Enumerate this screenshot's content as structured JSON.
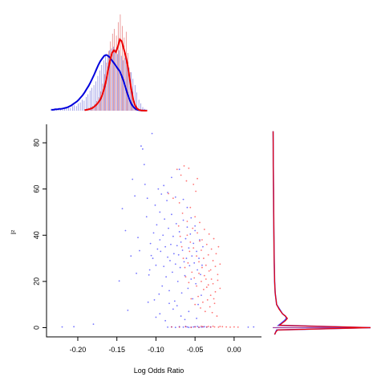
{
  "chart_data": {
    "type": "scatter",
    "title": "",
    "xlabel": "Log Odds Ratio",
    "ylabel": "I²",
    "xlim": [
      -0.24,
      0.035
    ],
    "ylim": [
      -4,
      88
    ],
    "x_ticks": [
      -0.2,
      -0.15,
      -0.1,
      -0.05,
      0.0
    ],
    "x_tick_labels": [
      "-0.20",
      "-0.15",
      "-0.10",
      "-0.05",
      "0.00"
    ],
    "y_ticks": [
      0,
      20,
      40,
      60,
      80
    ],
    "y_tick_labels": [
      "0",
      "20",
      "40",
      "60",
      "80"
    ],
    "grid": false,
    "legend": "none",
    "series": [
      {
        "color": "#0000ff",
        "points": [
          [
            -0.22,
            0.3
          ],
          [
            -0.205,
            0.4
          ],
          [
            -0.18,
            1.5
          ],
          [
            -0.147,
            20.2
          ],
          [
            -0.143,
            51.5
          ],
          [
            -0.139,
            42.0
          ],
          [
            -0.136,
            7.5
          ],
          [
            -0.132,
            31.0
          ],
          [
            -0.13,
            64.2
          ],
          [
            -0.127,
            57.0
          ],
          [
            -0.125,
            23.5
          ],
          [
            -0.123,
            39.0
          ],
          [
            -0.121,
            33.3
          ],
          [
            -0.119,
            78.6
          ],
          [
            -0.117,
            77.3
          ],
          [
            -0.115,
            70.6
          ],
          [
            -0.114,
            62.0
          ],
          [
            -0.112,
            48.0
          ],
          [
            -0.111,
            56.0
          ],
          [
            -0.11,
            11.0
          ],
          [
            -0.109,
            22.8
          ],
          [
            -0.108,
            25.0
          ],
          [
            -0.107,
            36.4
          ],
          [
            -0.106,
            31.2
          ],
          [
            -0.105,
            84.0
          ],
          [
            -0.104,
            30.0
          ],
          [
            -0.103,
            41.0
          ],
          [
            -0.102,
            12.0
          ],
          [
            -0.101,
            53.0
          ],
          [
            -0.1,
            27.0
          ],
          [
            -0.099,
            44.5
          ],
          [
            -0.098,
            34.0
          ],
          [
            -0.097,
            60.0
          ],
          [
            -0.096,
            14.5
          ],
          [
            -0.095,
            38.0
          ],
          [
            -0.094,
            33.0
          ],
          [
            -0.093,
            57.8
          ],
          [
            -0.092,
            18.0
          ],
          [
            -0.091,
            40.0
          ],
          [
            -0.09,
            26.5
          ],
          [
            -0.089,
            47.0
          ],
          [
            -0.088,
            35.0
          ],
          [
            -0.087,
            22.0
          ],
          [
            -0.086,
            55.0
          ],
          [
            -0.085,
            30.5
          ],
          [
            -0.084,
            43.0
          ],
          [
            -0.083,
            16.0
          ],
          [
            -0.082,
            29.0
          ],
          [
            -0.081,
            36.0
          ],
          [
            -0.08,
            49.0
          ],
          [
            -0.079,
            24.0
          ],
          [
            -0.078,
            39.5
          ],
          [
            -0.077,
            32.0
          ],
          [
            -0.076,
            11.5
          ],
          [
            -0.075,
            27.5
          ],
          [
            -0.074,
            45.0
          ],
          [
            -0.073,
            35.5
          ],
          [
            -0.072,
            20.0
          ],
          [
            -0.071,
            31.5
          ],
          [
            -0.07,
            41.5
          ],
          [
            -0.069,
            26.0
          ],
          [
            -0.068,
            37.0
          ],
          [
            -0.067,
            15.0
          ],
          [
            -0.066,
            33.5
          ],
          [
            -0.065,
            46.5
          ],
          [
            -0.064,
            28.5
          ],
          [
            -0.063,
            22.5
          ],
          [
            -0.062,
            38.5
          ],
          [
            -0.061,
            30.0
          ],
          [
            -0.06,
            43.5
          ],
          [
            -0.059,
            17.0
          ],
          [
            -0.058,
            34.5
          ],
          [
            -0.057,
            26.8
          ],
          [
            -0.056,
            40.5
          ],
          [
            -0.055,
            21.0
          ],
          [
            -0.054,
            31.0
          ],
          [
            -0.053,
            12.5
          ],
          [
            -0.052,
            36.5
          ],
          [
            -0.051,
            28.0
          ],
          [
            -0.05,
            44.0
          ],
          [
            -0.049,
            19.0
          ],
          [
            -0.048,
            33.0
          ],
          [
            -0.047,
            25.0
          ],
          [
            -0.046,
            10.0
          ],
          [
            -0.045,
            30.0
          ],
          [
            -0.044,
            38.0
          ],
          [
            -0.043,
            23.0
          ],
          [
            -0.042,
            14.0
          ],
          [
            -0.041,
            27.0
          ],
          [
            -0.04,
            35.0
          ],
          [
            -0.09,
            61.5
          ],
          [
            -0.085,
            58.5
          ],
          [
            -0.08,
            65.0
          ],
          [
            -0.075,
            56.5
          ],
          [
            -0.07,
            68.5
          ],
          [
            -0.095,
            50.0
          ],
          [
            -0.06,
            52.0
          ],
          [
            -0.055,
            47.5
          ],
          [
            -0.065,
            55.5
          ],
          [
            -0.05,
            42.0
          ],
          [
            -0.085,
            0.2
          ],
          [
            -0.08,
            0.3
          ],
          [
            -0.075,
            0.1
          ],
          [
            -0.07,
            0.4
          ],
          [
            -0.065,
            0.2
          ],
          [
            -0.06,
            0.3
          ],
          [
            -0.055,
            0.2
          ],
          [
            -0.05,
            0.4
          ],
          [
            -0.045,
            0.1
          ],
          [
            -0.04,
            0.3
          ],
          [
            -0.035,
            0.2
          ],
          [
            -0.03,
            0.3
          ],
          [
            -0.062,
            0.5
          ],
          [
            -0.058,
            0.1
          ],
          [
            -0.052,
            0.3
          ],
          [
            -0.047,
            0.5
          ],
          [
            -0.042,
            0.2
          ],
          [
            -0.038,
            0.4
          ],
          [
            0.018,
            0.2
          ],
          [
            0.025,
            0.3
          ],
          [
            -0.1,
            4.5
          ],
          [
            -0.095,
            6.0
          ],
          [
            -0.088,
            3.0
          ],
          [
            -0.078,
            8.0
          ],
          [
            -0.068,
            5.0
          ],
          [
            -0.058,
            7.0
          ],
          [
            -0.048,
            4.0
          ],
          [
            -0.073,
            9.5
          ],
          [
            -0.083,
            10.5
          ],
          [
            -0.063,
            3.5
          ]
        ]
      },
      {
        "color": "#ff0000",
        "points": [
          [
            -0.08,
            0.3
          ],
          [
            -0.07,
            0.2
          ],
          [
            -0.062,
            0.4
          ],
          [
            -0.055,
            0.1
          ],
          [
            -0.05,
            0.3
          ],
          [
            -0.045,
            0.2
          ],
          [
            -0.04,
            0.4
          ],
          [
            -0.035,
            0.3
          ],
          [
            -0.03,
            0.2
          ],
          [
            -0.025,
            0.3
          ],
          [
            -0.02,
            0.2
          ],
          [
            -0.015,
            0.4
          ],
          [
            -0.01,
            0.3
          ],
          [
            -0.005,
            0.2
          ],
          [
            0.0,
            0.3
          ],
          [
            0.005,
            0.2
          ],
          [
            -0.042,
            0.6
          ],
          [
            -0.033,
            0.5
          ],
          [
            -0.027,
            0.6
          ],
          [
            -0.018,
            0.5
          ],
          [
            -0.073,
            68.5
          ],
          [
            -0.068,
            66.0
          ],
          [
            -0.064,
            70.0
          ],
          [
            -0.061,
            63.5
          ],
          [
            -0.058,
            69.0
          ],
          [
            -0.052,
            62.0
          ],
          [
            -0.049,
            59.0
          ],
          [
            -0.047,
            64.5
          ],
          [
            -0.084,
            58.0
          ],
          [
            -0.078,
            56.0
          ],
          [
            -0.07,
            54.0
          ],
          [
            -0.066,
            49.5
          ],
          [
            -0.06,
            46.0
          ],
          [
            -0.056,
            52.0
          ],
          [
            -0.053,
            43.0
          ],
          [
            -0.05,
            48.0
          ],
          [
            -0.047,
            41.0
          ],
          [
            -0.044,
            45.5
          ],
          [
            -0.041,
            38.0
          ],
          [
            -0.038,
            42.5
          ],
          [
            -0.035,
            36.0
          ],
          [
            -0.032,
            40.5
          ],
          [
            -0.029,
            34.0
          ],
          [
            -0.026,
            38.5
          ],
          [
            -0.023,
            32.0
          ],
          [
            -0.02,
            35.0
          ],
          [
            -0.06,
            40.0
          ],
          [
            -0.056,
            37.0
          ],
          [
            -0.052,
            34.5
          ],
          [
            -0.048,
            31.0
          ],
          [
            -0.045,
            28.5
          ],
          [
            -0.042,
            33.5
          ],
          [
            -0.039,
            30.0
          ],
          [
            -0.036,
            27.0
          ],
          [
            -0.033,
            31.5
          ],
          [
            -0.03,
            25.0
          ],
          [
            -0.027,
            29.0
          ],
          [
            -0.024,
            26.5
          ],
          [
            -0.021,
            23.0
          ],
          [
            -0.018,
            27.5
          ],
          [
            -0.062,
            22.0
          ],
          [
            -0.058,
            19.5
          ],
          [
            -0.054,
            24.0
          ],
          [
            -0.051,
            21.5
          ],
          [
            -0.048,
            18.0
          ],
          [
            -0.045,
            23.5
          ],
          [
            -0.042,
            20.0
          ],
          [
            -0.039,
            16.5
          ],
          [
            -0.036,
            21.0
          ],
          [
            -0.033,
            18.5
          ],
          [
            -0.03,
            14.0
          ],
          [
            -0.027,
            19.0
          ],
          [
            -0.024,
            15.5
          ],
          [
            -0.021,
            20.5
          ],
          [
            -0.018,
            17.0
          ],
          [
            -0.055,
            12.5
          ],
          [
            -0.05,
            10.0
          ],
          [
            -0.046,
            13.5
          ],
          [
            -0.043,
            8.5
          ],
          [
            -0.04,
            11.0
          ],
          [
            -0.037,
            7.0
          ],
          [
            -0.034,
            12.0
          ],
          [
            -0.031,
            9.0
          ],
          [
            -0.028,
            6.5
          ],
          [
            -0.025,
            10.5
          ],
          [
            -0.022,
            5.0
          ],
          [
            -0.065,
            30.0
          ],
          [
            -0.063,
            26.0
          ],
          [
            -0.067,
            35.0
          ],
          [
            -0.071,
            44.0
          ],
          [
            -0.069,
            39.5
          ],
          [
            -0.059,
            28.0
          ],
          [
            -0.057,
            33.0
          ],
          [
            -0.044,
            37.5
          ],
          [
            -0.041,
            26.0
          ],
          [
            -0.038,
            22.5
          ],
          [
            -0.035,
            17.5
          ],
          [
            -0.032,
            24.5
          ],
          [
            -0.029,
            21.0
          ],
          [
            -0.026,
            12.5
          ]
        ]
      }
    ],
    "marginal_x": {
      "bins_start": -0.235,
      "bin_width": 0.0025,
      "blue_hist": [
        0.02,
        0.01,
        0.02,
        0.01,
        0.02,
        0.02,
        0.03,
        0.02,
        0.03,
        0.04,
        0.03,
        0.05,
        0.06,
        0.05,
        0.08,
        0.09,
        0.12,
        0.11,
        0.15,
        0.18,
        0.22,
        0.25,
        0.28,
        0.32,
        0.38,
        0.44,
        0.5,
        0.55,
        0.6,
        0.62,
        0.66,
        0.68,
        0.7,
        0.67,
        0.62,
        0.66,
        0.6,
        0.55,
        0.58,
        0.5,
        0.47,
        0.42,
        0.35,
        0.28,
        0.2,
        0.12,
        0.08,
        0.04,
        0.02,
        0.01
      ],
      "red_hist": [
        0,
        0,
        0,
        0,
        0,
        0,
        0,
        0,
        0,
        0,
        0,
        0,
        0,
        0,
        0,
        0,
        0,
        0.01,
        0.02,
        0.03,
        0.04,
        0.05,
        0.07,
        0.1,
        0.14,
        0.2,
        0.28,
        0.38,
        0.5,
        0.62,
        0.72,
        0.8,
        0.85,
        0.78,
        0.92,
        1.0,
        0.88,
        0.76,
        0.82,
        0.6,
        0.4,
        0.22,
        0.1,
        0.05,
        0.02,
        0.01,
        0,
        0,
        0,
        0
      ],
      "blue_density": [
        0.01,
        0.01,
        0.015,
        0.015,
        0.02,
        0.02,
        0.025,
        0.03,
        0.035,
        0.045,
        0.055,
        0.07,
        0.085,
        0.1,
        0.12,
        0.145,
        0.17,
        0.2,
        0.235,
        0.27,
        0.31,
        0.355,
        0.4,
        0.45,
        0.5,
        0.54,
        0.57,
        0.6,
        0.61,
        0.6,
        0.58,
        0.55,
        0.52,
        0.49,
        0.46,
        0.43,
        0.38,
        0.32,
        0.25,
        0.18,
        0.12,
        0.07,
        0.04,
        0.02,
        0.01,
        0.005,
        0.003,
        0.002,
        0.001,
        0.001
      ],
      "red_density": [
        0,
        0,
        0,
        0,
        0,
        0,
        0,
        0,
        0,
        0,
        0,
        0,
        0,
        0,
        0,
        0,
        0,
        0.005,
        0.01,
        0.015,
        0.02,
        0.03,
        0.045,
        0.065,
        0.09,
        0.12,
        0.17,
        0.24,
        0.33,
        0.44,
        0.55,
        0.63,
        0.66,
        0.64,
        0.7,
        0.78,
        0.76,
        0.68,
        0.6,
        0.5,
        0.36,
        0.22,
        0.11,
        0.05,
        0.02,
        0.008,
        0.003,
        0.001,
        0,
        0
      ]
    },
    "marginal_y": {
      "blue_density": [
        [
          -3,
          0.02
        ],
        [
          -2,
          0.03
        ],
        [
          -1,
          0.04
        ],
        [
          0,
          1.0
        ],
        [
          1,
          0.06
        ],
        [
          2,
          0.09
        ],
        [
          3,
          0.12
        ],
        [
          4,
          0.14
        ],
        [
          5,
          0.13
        ],
        [
          6,
          0.1
        ],
        [
          8,
          0.07
        ],
        [
          10,
          0.04
        ],
        [
          15,
          0.025
        ],
        [
          20,
          0.02
        ],
        [
          30,
          0.015
        ],
        [
          40,
          0.012
        ],
        [
          50,
          0.01
        ],
        [
          60,
          0.008
        ],
        [
          70,
          0.006
        ],
        [
          80,
          0.005
        ],
        [
          85,
          0.004
        ]
      ],
      "red_density": [
        [
          -3,
          0.02
        ],
        [
          -2,
          0.03
        ],
        [
          -1,
          0.05
        ],
        [
          0,
          1.0
        ],
        [
          1,
          0.07
        ],
        [
          2,
          0.1
        ],
        [
          3,
          0.13
        ],
        [
          4,
          0.15
        ],
        [
          5,
          0.13
        ],
        [
          6,
          0.1
        ],
        [
          8,
          0.065
        ],
        [
          10,
          0.04
        ],
        [
          15,
          0.025
        ],
        [
          20,
          0.02
        ],
        [
          30,
          0.015
        ],
        [
          40,
          0.012
        ],
        [
          50,
          0.01
        ],
        [
          60,
          0.008
        ],
        [
          70,
          0.006
        ],
        [
          80,
          0.005
        ],
        [
          85,
          0.004
        ]
      ]
    }
  }
}
